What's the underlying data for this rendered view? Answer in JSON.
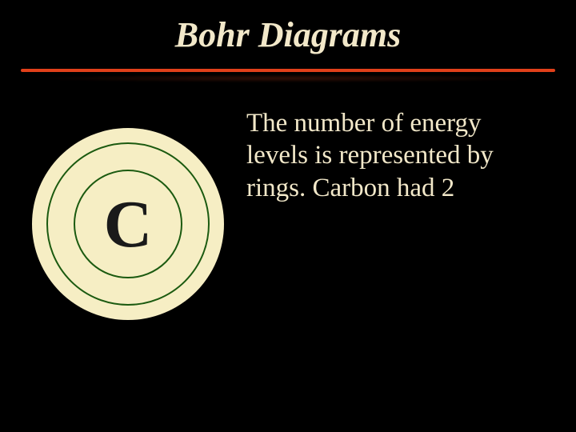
{
  "slide": {
    "background_color": "#000000",
    "title": {
      "text": "Bohr Diagrams",
      "color": "#f2e8c9",
      "fontsize": 44,
      "font_style": "italic",
      "font_weight": "bold"
    },
    "divider": {
      "bar_color": "#e1401a",
      "shadow_color": "#3a1208"
    },
    "atom": {
      "disc_color": "#f6eec4",
      "ring_color": "#1b5a10",
      "element_symbol": "C",
      "element_color": "#1a1a1a",
      "element_fontsize": 84
    },
    "body": {
      "text": "The number of energy levels is represented by rings. Carbon had 2",
      "color": "#f2e8c9",
      "fontsize": 33
    }
  }
}
